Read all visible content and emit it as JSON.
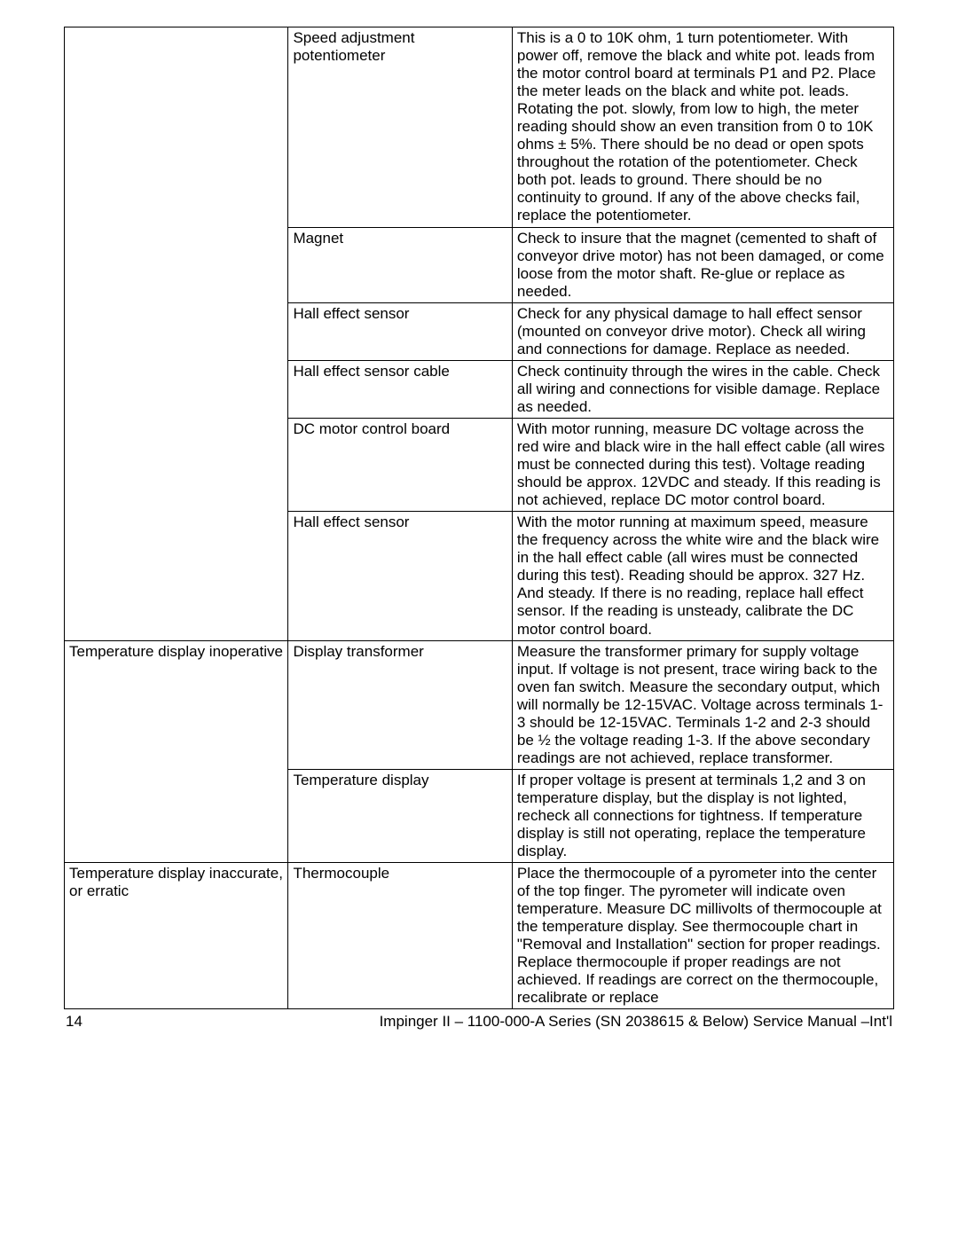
{
  "rows": [
    {
      "symptom": "",
      "cause": "Speed adjustment potentiometer",
      "remedy": "This is a 0 to 10K ohm, 1 turn potentiometer. With power off, remove the black and white pot. leads from the motor control board at terminals P1 and P2. Place the meter leads on the black and white pot. leads. Rotating the pot. slowly, from low to high, the meter reading should show an even transition from 0 to 10K ohms ± 5%. There should be no dead or open spots throughout the rotation of the potentiometer. Check both pot. leads to ground. There should be no continuity to ground. If any of the above checks fail, replace the potentiometer."
    },
    {
      "symptom": "",
      "cause": "Magnet",
      "remedy": "Check to insure that the magnet (cemented to shaft of conveyor drive motor) has not been damaged, or come loose from the motor shaft. Re-glue or replace as needed."
    },
    {
      "symptom": "",
      "cause": "Hall effect sensor",
      "remedy": "Check for any physical damage to hall effect sensor (mounted on conveyor drive motor). Check all wiring and connections for damage. Replace as needed."
    },
    {
      "symptom": "",
      "cause": "Hall effect sensor cable",
      "remedy": "Check continuity through the wires in the cable. Check all wiring and connections for visible damage. Replace as needed."
    },
    {
      "symptom": "",
      "cause": "DC motor control board",
      "remedy": "With motor running, measure DC voltage across the red wire and black wire in the hall effect cable (all wires must be connected during this test). Voltage reading should be approx. 12VDC and steady. If this reading is not achieved, replace DC motor control board."
    },
    {
      "symptom": "",
      "cause": "Hall effect sensor",
      "remedy": "With the motor running at maximum speed, measure the frequency across the white wire and the black wire in the hall effect cable (all wires must be connected during this test). Reading should be approx. 327 Hz. And steady. If there is no reading, replace hall effect sensor. If the reading is unsteady, calibrate the DC motor control board."
    },
    {
      "symptom": "Temperature display inoperative",
      "cause": "Display transformer",
      "remedy": "Measure the transformer primary for supply voltage input. If voltage is not present, trace wiring back to the oven fan switch. Measure the secondary output, which will normally be 12-15VAC. Voltage across terminals 1-3 should be 12-15VAC. Terminals 1-2 and 2-3 should be ½ the voltage reading 1-3. If the above secondary readings are not achieved, replace transformer."
    },
    {
      "symptom": "",
      "cause": "Temperature display",
      "remedy": "If proper voltage is present at terminals 1,2 and 3 on temperature display, but the display is not lighted, recheck all connections for tightness. If temperature display is still not operating, replace the temperature display."
    },
    {
      "symptom": "Temperature display inaccurate, or erratic",
      "cause": "Thermocouple",
      "remedy": "Place the thermocouple of a pyrometer into the center of the top finger. The pyrometer will indicate oven temperature. Measure DC millivolts of thermocouple at the temperature display. See thermocouple chart in \"Removal and Installation\" section for proper readings. Replace thermocouple if proper readings are not achieved. If readings are correct on the thermocouple, recalibrate or replace"
    }
  ],
  "groups": [
    {
      "start": 0,
      "span": 6
    },
    {
      "start": 6,
      "span": 2
    },
    {
      "start": 8,
      "span": 1
    }
  ],
  "footer": {
    "page": "14",
    "title": "Impinger II – 1100-000-A Series (SN 2038615 & Below) Service Manual –Int'l"
  }
}
